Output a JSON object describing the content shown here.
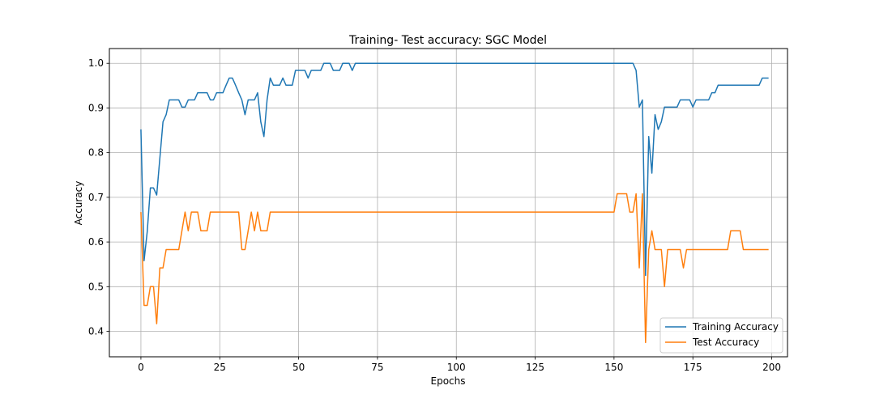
{
  "chart_data": {
    "type": "line",
    "title": "Training- Test accuracy: SGC Model",
    "xlabel": "Epochs",
    "ylabel": "Accuracy",
    "xlim": [
      -10,
      205
    ],
    "ylim": [
      0.343,
      1.033
    ],
    "x_ticks": [
      0,
      25,
      50,
      75,
      100,
      125,
      150,
      175,
      200
    ],
    "y_ticks": [
      0.4,
      0.5,
      0.6,
      0.7,
      0.8,
      0.9,
      1.0
    ],
    "x_tick_labels": [
      "0",
      "25",
      "50",
      "75",
      "100",
      "125",
      "150",
      "175",
      "200"
    ],
    "y_tick_labels": [
      "0.4",
      "0.5",
      "0.6",
      "0.7",
      "0.8",
      "0.9",
      "1.0"
    ],
    "grid": true,
    "legend_position": "bottom-right",
    "series": [
      {
        "name": "Training Accuracy",
        "color": "#1f77b4",
        "points": [
          [
            0,
            0.852
          ],
          [
            1,
            0.558
          ],
          [
            2,
            0.623
          ],
          [
            3,
            0.721
          ],
          [
            4,
            0.721
          ],
          [
            5,
            0.705
          ],
          [
            6,
            0.787
          ],
          [
            7,
            0.869
          ],
          [
            8,
            0.885
          ],
          [
            9,
            0.918
          ],
          [
            10,
            0.918
          ],
          [
            11,
            0.918
          ],
          [
            12,
            0.918
          ],
          [
            13,
            0.902
          ],
          [
            14,
            0.902
          ],
          [
            15,
            0.918
          ],
          [
            16,
            0.918
          ],
          [
            17,
            0.918
          ],
          [
            18,
            0.934
          ],
          [
            19,
            0.934
          ],
          [
            20,
            0.934
          ],
          [
            21,
            0.934
          ],
          [
            22,
            0.918
          ],
          [
            23,
            0.918
          ],
          [
            24,
            0.934
          ],
          [
            25,
            0.934
          ],
          [
            26,
            0.934
          ],
          [
            27,
            0.951
          ],
          [
            28,
            0.967
          ],
          [
            29,
            0.967
          ],
          [
            30,
            0.951
          ],
          [
            31,
            0.934
          ],
          [
            32,
            0.918
          ],
          [
            33,
            0.885
          ],
          [
            34,
            0.918
          ],
          [
            35,
            0.918
          ],
          [
            36,
            0.918
          ],
          [
            37,
            0.934
          ],
          [
            38,
            0.869
          ],
          [
            39,
            0.836
          ],
          [
            40,
            0.918
          ],
          [
            41,
            0.967
          ],
          [
            42,
            0.951
          ],
          [
            43,
            0.951
          ],
          [
            44,
            0.951
          ],
          [
            45,
            0.967
          ],
          [
            46,
            0.951
          ],
          [
            47,
            0.951
          ],
          [
            48,
            0.951
          ],
          [
            49,
            0.984
          ],
          [
            50,
            0.984
          ],
          [
            51,
            0.984
          ],
          [
            52,
            0.984
          ],
          [
            53,
            0.967
          ],
          [
            54,
            0.984
          ],
          [
            55,
            0.984
          ],
          [
            56,
            0.984
          ],
          [
            57,
            0.984
          ],
          [
            58,
            1.0
          ],
          [
            59,
            1.0
          ],
          [
            60,
            1.0
          ],
          [
            61,
            0.984
          ],
          [
            62,
            0.984
          ],
          [
            63,
            0.984
          ],
          [
            64,
            1.0
          ],
          [
            65,
            1.0
          ],
          [
            66,
            1.0
          ],
          [
            67,
            0.984
          ],
          [
            68,
            1.0
          ],
          [
            69,
            1.0
          ],
          [
            70,
            1.0
          ],
          [
            155,
            1.0
          ],
          [
            156,
            1.0
          ],
          [
            157,
            0.984
          ],
          [
            158,
            0.902
          ],
          [
            159,
            0.918
          ],
          [
            160,
            0.525
          ],
          [
            161,
            0.836
          ],
          [
            162,
            0.754
          ],
          [
            163,
            0.885
          ],
          [
            164,
            0.852
          ],
          [
            165,
            0.869
          ],
          [
            166,
            0.902
          ],
          [
            167,
            0.902
          ],
          [
            168,
            0.902
          ],
          [
            169,
            0.902
          ],
          [
            170,
            0.902
          ],
          [
            171,
            0.918
          ],
          [
            172,
            0.918
          ],
          [
            173,
            0.918
          ],
          [
            174,
            0.918
          ],
          [
            175,
            0.902
          ],
          [
            176,
            0.918
          ],
          [
            177,
            0.918
          ],
          [
            178,
            0.918
          ],
          [
            179,
            0.918
          ],
          [
            180,
            0.918
          ],
          [
            181,
            0.934
          ],
          [
            182,
            0.934
          ],
          [
            183,
            0.951
          ],
          [
            184,
            0.951
          ],
          [
            185,
            0.951
          ],
          [
            186,
            0.951
          ],
          [
            187,
            0.951
          ],
          [
            188,
            0.951
          ],
          [
            189,
            0.951
          ],
          [
            190,
            0.951
          ],
          [
            191,
            0.951
          ],
          [
            192,
            0.951
          ],
          [
            193,
            0.951
          ],
          [
            194,
            0.951
          ],
          [
            195,
            0.951
          ],
          [
            196,
            0.951
          ],
          [
            197,
            0.967
          ],
          [
            198,
            0.967
          ],
          [
            199,
            0.967
          ]
        ]
      },
      {
        "name": "Test Accuracy",
        "color": "#ff7f0e",
        "points": [
          [
            0,
            0.667
          ],
          [
            1,
            0.458
          ],
          [
            2,
            0.458
          ],
          [
            3,
            0.5
          ],
          [
            4,
            0.5
          ],
          [
            5,
            0.417
          ],
          [
            6,
            0.542
          ],
          [
            7,
            0.542
          ],
          [
            8,
            0.583
          ],
          [
            9,
            0.583
          ],
          [
            10,
            0.583
          ],
          [
            11,
            0.583
          ],
          [
            12,
            0.583
          ],
          [
            13,
            0.625
          ],
          [
            14,
            0.667
          ],
          [
            15,
            0.625
          ],
          [
            16,
            0.667
          ],
          [
            17,
            0.667
          ],
          [
            18,
            0.667
          ],
          [
            19,
            0.625
          ],
          [
            20,
            0.625
          ],
          [
            21,
            0.625
          ],
          [
            22,
            0.667
          ],
          [
            23,
            0.667
          ],
          [
            24,
            0.667
          ],
          [
            25,
            0.667
          ],
          [
            26,
            0.667
          ],
          [
            27,
            0.667
          ],
          [
            28,
            0.667
          ],
          [
            29,
            0.667
          ],
          [
            30,
            0.667
          ],
          [
            31,
            0.667
          ],
          [
            32,
            0.583
          ],
          [
            33,
            0.583
          ],
          [
            34,
            0.625
          ],
          [
            35,
            0.667
          ],
          [
            36,
            0.625
          ],
          [
            37,
            0.667
          ],
          [
            38,
            0.625
          ],
          [
            39,
            0.625
          ],
          [
            40,
            0.625
          ],
          [
            41,
            0.667
          ],
          [
            42,
            0.667
          ],
          [
            150,
            0.667
          ],
          [
            151,
            0.708
          ],
          [
            152,
            0.708
          ],
          [
            153,
            0.708
          ],
          [
            154,
            0.708
          ],
          [
            155,
            0.667
          ],
          [
            156,
            0.667
          ],
          [
            157,
            0.708
          ],
          [
            158,
            0.542
          ],
          [
            159,
            0.708
          ],
          [
            160,
            0.375
          ],
          [
            161,
            0.583
          ],
          [
            162,
            0.625
          ],
          [
            163,
            0.583
          ],
          [
            164,
            0.583
          ],
          [
            165,
            0.583
          ],
          [
            166,
            0.5
          ],
          [
            167,
            0.583
          ],
          [
            168,
            0.583
          ],
          [
            169,
            0.583
          ],
          [
            170,
            0.583
          ],
          [
            171,
            0.583
          ],
          [
            172,
            0.542
          ],
          [
            173,
            0.583
          ],
          [
            174,
            0.583
          ],
          [
            175,
            0.583
          ],
          [
            176,
            0.583
          ],
          [
            177,
            0.583
          ],
          [
            178,
            0.583
          ],
          [
            179,
            0.583
          ],
          [
            180,
            0.583
          ],
          [
            181,
            0.583
          ],
          [
            182,
            0.583
          ],
          [
            183,
            0.583
          ],
          [
            184,
            0.583
          ],
          [
            185,
            0.583
          ],
          [
            186,
            0.583
          ],
          [
            187,
            0.625
          ],
          [
            188,
            0.625
          ],
          [
            189,
            0.625
          ],
          [
            190,
            0.625
          ],
          [
            191,
            0.583
          ],
          [
            192,
            0.583
          ],
          [
            193,
            0.583
          ],
          [
            194,
            0.583
          ],
          [
            195,
            0.583
          ],
          [
            196,
            0.583
          ],
          [
            197,
            0.583
          ],
          [
            198,
            0.583
          ],
          [
            199,
            0.583
          ]
        ]
      }
    ]
  }
}
